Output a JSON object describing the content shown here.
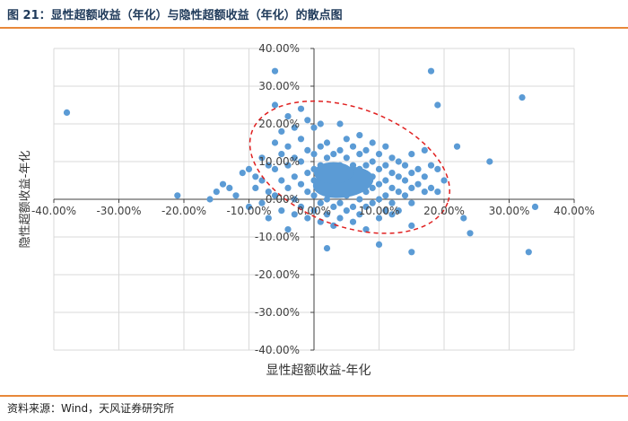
{
  "figure": {
    "title": "图 21：显性超额收益（年化）与隐性超额收益（年化）的散点图",
    "source": "资料来源：Wind，天风证券研究所"
  },
  "colors": {
    "accent_rule": "#e8883a",
    "points": "#5b9bd5",
    "ellipse": "#e02020",
    "grid": "#d9d9d9"
  },
  "chart_data": {
    "type": "scatter",
    "title": "",
    "xlabel": "显性超额收益-年化",
    "ylabel": "隐性超额收益-年化",
    "xlim": [
      -0.4,
      0.4
    ],
    "ylim": [
      -0.4,
      0.4
    ],
    "x_ticks": [
      -0.4,
      -0.3,
      -0.2,
      -0.1,
      0.0,
      0.1,
      0.2,
      0.3,
      0.4
    ],
    "y_ticks": [
      -0.4,
      -0.3,
      -0.2,
      -0.1,
      0.0,
      0.1,
      0.2,
      0.3,
      0.4
    ],
    "x_tick_labels": [
      "-40.00%",
      "-30.00%",
      "-20.00%",
      "-10.00%",
      "0.00%",
      "10.00%",
      "20.00%",
      "30.00%",
      "40.00%"
    ],
    "y_tick_labels": [
      "-40.00%",
      "-30.00%",
      "-20.00%",
      "-10.00%",
      "0.00%",
      "10.00%",
      "20.00%",
      "30.00%",
      "40.00%"
    ],
    "grid": true,
    "legend": "none",
    "annotation": {
      "shape": "ellipse",
      "style": "dashed",
      "center": [
        0.05,
        0.08
      ],
      "note": "red dashed ellipse around main cluster"
    },
    "points": [
      [
        -0.38,
        0.23
      ],
      [
        -0.21,
        0.01
      ],
      [
        -0.16,
        0.0
      ],
      [
        -0.15,
        0.02
      ],
      [
        -0.14,
        0.04
      ],
      [
        -0.13,
        0.03
      ],
      [
        -0.12,
        0.01
      ],
      [
        -0.11,
        0.07
      ],
      [
        -0.1,
        0.08
      ],
      [
        -0.1,
        -0.02
      ],
      [
        -0.09,
        0.03
      ],
      [
        -0.09,
        0.06
      ],
      [
        -0.08,
        0.11
      ],
      [
        -0.08,
        0.05
      ],
      [
        -0.08,
        -0.01
      ],
      [
        -0.07,
        0.02
      ],
      [
        -0.07,
        0.09
      ],
      [
        -0.07,
        -0.05
      ],
      [
        -0.06,
        0.34
      ],
      [
        -0.06,
        0.25
      ],
      [
        -0.06,
        0.15
      ],
      [
        -0.06,
        0.08
      ],
      [
        -0.06,
        0.01
      ],
      [
        -0.05,
        0.18
      ],
      [
        -0.05,
        0.12
      ],
      [
        -0.05,
        0.05
      ],
      [
        -0.05,
        -0.03
      ],
      [
        -0.04,
        0.22
      ],
      [
        -0.04,
        0.14
      ],
      [
        -0.04,
        0.09
      ],
      [
        -0.04,
        0.03
      ],
      [
        -0.04,
        -0.08
      ],
      [
        -0.03,
        0.19
      ],
      [
        -0.03,
        0.11
      ],
      [
        -0.03,
        0.06
      ],
      [
        -0.03,
        0.0
      ],
      [
        -0.03,
        -0.04
      ],
      [
        -0.02,
        0.24
      ],
      [
        -0.02,
        0.16
      ],
      [
        -0.02,
        0.1
      ],
      [
        -0.02,
        0.04
      ],
      [
        -0.02,
        -0.02
      ],
      [
        -0.01,
        0.21
      ],
      [
        -0.01,
        0.13
      ],
      [
        -0.01,
        0.07
      ],
      [
        -0.01,
        0.02
      ],
      [
        -0.01,
        -0.05
      ],
      [
        0.0,
        0.19
      ],
      [
        0.0,
        0.12
      ],
      [
        0.0,
        0.08
      ],
      [
        0.0,
        0.05
      ],
      [
        0.0,
        0.01
      ],
      [
        0.0,
        -0.03
      ],
      [
        0.01,
        0.2
      ],
      [
        0.01,
        0.14
      ],
      [
        0.01,
        0.09
      ],
      [
        0.01,
        0.06
      ],
      [
        0.01,
        0.03
      ],
      [
        0.01,
        -0.01
      ],
      [
        0.01,
        -0.06
      ],
      [
        0.02,
        0.15
      ],
      [
        0.02,
        0.11
      ],
      [
        0.02,
        0.07
      ],
      [
        0.02,
        0.04
      ],
      [
        0.02,
        0.0
      ],
      [
        0.02,
        -0.04
      ],
      [
        0.02,
        -0.13
      ],
      [
        0.03,
        0.12
      ],
      [
        0.03,
        0.08
      ],
      [
        0.03,
        0.05
      ],
      [
        0.03,
        0.02
      ],
      [
        0.03,
        -0.02
      ],
      [
        0.03,
        -0.07
      ],
      [
        0.04,
        0.2
      ],
      [
        0.04,
        0.13
      ],
      [
        0.04,
        0.09
      ],
      [
        0.04,
        0.06
      ],
      [
        0.04,
        0.03
      ],
      [
        0.04,
        -0.01
      ],
      [
        0.04,
        -0.05
      ],
      [
        0.05,
        0.16
      ],
      [
        0.05,
        0.11
      ],
      [
        0.05,
        0.07
      ],
      [
        0.05,
        0.04
      ],
      [
        0.05,
        0.01
      ],
      [
        0.05,
        -0.03
      ],
      [
        0.06,
        0.14
      ],
      [
        0.06,
        0.09
      ],
      [
        0.06,
        0.05
      ],
      [
        0.06,
        0.02
      ],
      [
        0.06,
        -0.02
      ],
      [
        0.06,
        -0.06
      ],
      [
        0.07,
        0.17
      ],
      [
        0.07,
        0.12
      ],
      [
        0.07,
        0.08
      ],
      [
        0.07,
        0.04
      ],
      [
        0.07,
        0.0
      ],
      [
        0.07,
        -0.04
      ],
      [
        0.08,
        0.13
      ],
      [
        0.08,
        0.09
      ],
      [
        0.08,
        0.05
      ],
      [
        0.08,
        0.02
      ],
      [
        0.08,
        -0.02
      ],
      [
        0.08,
        -0.08
      ],
      [
        0.09,
        0.15
      ],
      [
        0.09,
        0.1
      ],
      [
        0.09,
        0.06
      ],
      [
        0.09,
        0.03
      ],
      [
        0.09,
        -0.01
      ],
      [
        0.1,
        0.12
      ],
      [
        0.1,
        0.08
      ],
      [
        0.1,
        0.04
      ],
      [
        0.1,
        0.0
      ],
      [
        0.1,
        -0.05
      ],
      [
        0.1,
        -0.12
      ],
      [
        0.11,
        0.14
      ],
      [
        0.11,
        0.09
      ],
      [
        0.11,
        0.05
      ],
      [
        0.11,
        0.01
      ],
      [
        0.11,
        -0.03
      ],
      [
        0.12,
        0.11
      ],
      [
        0.12,
        0.07
      ],
      [
        0.12,
        0.03
      ],
      [
        0.12,
        -0.01
      ],
      [
        0.12,
        -0.04
      ],
      [
        0.13,
        0.1
      ],
      [
        0.13,
        0.06
      ],
      [
        0.13,
        0.02
      ],
      [
        0.13,
        -0.03
      ],
      [
        0.14,
        0.09
      ],
      [
        0.14,
        0.05
      ],
      [
        0.14,
        0.01
      ],
      [
        0.15,
        0.12
      ],
      [
        0.15,
        0.07
      ],
      [
        0.15,
        0.03
      ],
      [
        0.15,
        -0.01
      ],
      [
        0.15,
        -0.07
      ],
      [
        0.15,
        -0.14
      ],
      [
        0.16,
        0.08
      ],
      [
        0.16,
        0.04
      ],
      [
        0.17,
        0.13
      ],
      [
        0.17,
        0.06
      ],
      [
        0.17,
        0.02
      ],
      [
        0.18,
        0.34
      ],
      [
        0.18,
        0.09
      ],
      [
        0.18,
        0.03
      ],
      [
        0.19,
        0.25
      ],
      [
        0.19,
        0.08
      ],
      [
        0.19,
        0.02
      ],
      [
        0.2,
        0.05
      ],
      [
        0.22,
        0.14
      ],
      [
        0.23,
        -0.05
      ],
      [
        0.24,
        -0.09
      ],
      [
        0.27,
        0.1
      ],
      [
        0.32,
        0.27
      ],
      [
        0.33,
        -0.14
      ],
      [
        0.34,
        -0.02
      ]
    ]
  }
}
